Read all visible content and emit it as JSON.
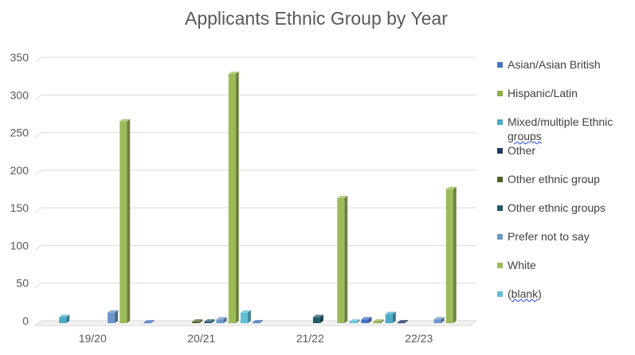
{
  "chart_data": {
    "type": "bar",
    "title": "Applicants Ethnic Group by Year",
    "categories": [
      "19/20",
      "20/21",
      "21/22",
      "22/23"
    ],
    "ylim": [
      0,
      350
    ],
    "yticks": [
      0,
      50,
      100,
      150,
      200,
      250,
      300,
      350
    ],
    "grid": true,
    "legend_position": "right",
    "series": [
      {
        "name": "Asian/Asian  British",
        "color": "#4472C4",
        "values": [
          0,
          1,
          1,
          5
        ]
      },
      {
        "name": "Hispanic/Latin",
        "color": "#8DB04A",
        "values": [
          0,
          0,
          0,
          2
        ]
      },
      {
        "name": "Mixed/multiple Ethnic groups",
        "color": "#4BACC6",
        "values": [
          8,
          0,
          0,
          12
        ]
      },
      {
        "name": "Other",
        "color": "#1F3864",
        "values": [
          0,
          0,
          0,
          1
        ]
      },
      {
        "name": "Other ethnic group",
        "color": "#4F6228",
        "values": [
          0,
          2,
          0,
          0
        ]
      },
      {
        "name": "Other ethnic groups",
        "color": "#215968",
        "values": [
          0,
          2,
          8,
          0
        ]
      },
      {
        "name": "Prefer not to say",
        "color": "#6C96C9",
        "values": [
          14,
          5,
          0,
          5
        ]
      },
      {
        "name": "White",
        "color": "#9BBB59",
        "values": [
          268,
          331,
          166,
          178
        ]
      },
      {
        "name": "(blank)",
        "color": "#5FC0D6",
        "values": [
          0,
          14,
          2,
          0
        ]
      }
    ]
  },
  "legend": {
    "items": [
      {
        "label": "Asian/Asian  British",
        "color": "#4472C4"
      },
      {
        "label": "Hispanic/Latin",
        "color": "#8DB04A"
      },
      {
        "label_main": "Mixed/multiple Ethnic",
        "label_cont": "groups",
        "color": "#4BACC6"
      },
      {
        "label": "Other",
        "color": "#1F3864"
      },
      {
        "label": "Other ethnic group",
        "color": "#4F6228"
      },
      {
        "label": "Other ethnic groups",
        "color": "#215968"
      },
      {
        "label": "Prefer not to say",
        "color": "#6C96C9"
      },
      {
        "label": "White",
        "color": "#9BBB59"
      },
      {
        "label_open": "(",
        "label_word": "blank",
        "label_close": ")",
        "color": "#5FC0D6"
      }
    ]
  }
}
